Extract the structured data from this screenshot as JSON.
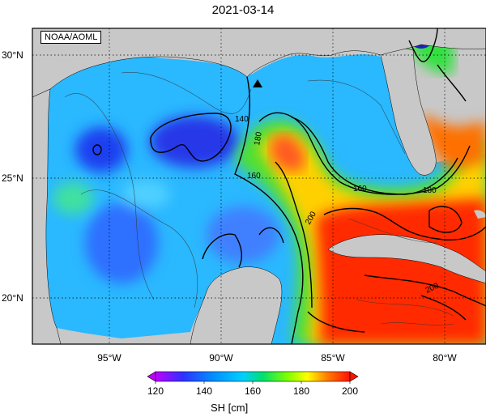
{
  "title": "2021-03-14",
  "credit": "NOAA/AOML",
  "lat_labels": [
    "30°N",
    "25°N",
    "20°N"
  ],
  "lon_labels": [
    "95°W",
    "90°W",
    "85°W",
    "80°W"
  ],
  "contour_labels": [
    "140",
    "160",
    "180",
    "160",
    "180",
    "200",
    "200"
  ],
  "colorbar": {
    "title": "SH [cm]",
    "ticks": [
      "120",
      "140",
      "160",
      "180",
      "200"
    ],
    "colors": [
      "#c000ff",
      "#2020ff",
      "#00b0ff",
      "#00e0a0",
      "#30e030",
      "#ffff00",
      "#ffa000",
      "#ff2000"
    ]
  },
  "colors": {
    "land": "#c8c8c8",
    "frame": "#000000"
  },
  "marker": "triangle-up"
}
